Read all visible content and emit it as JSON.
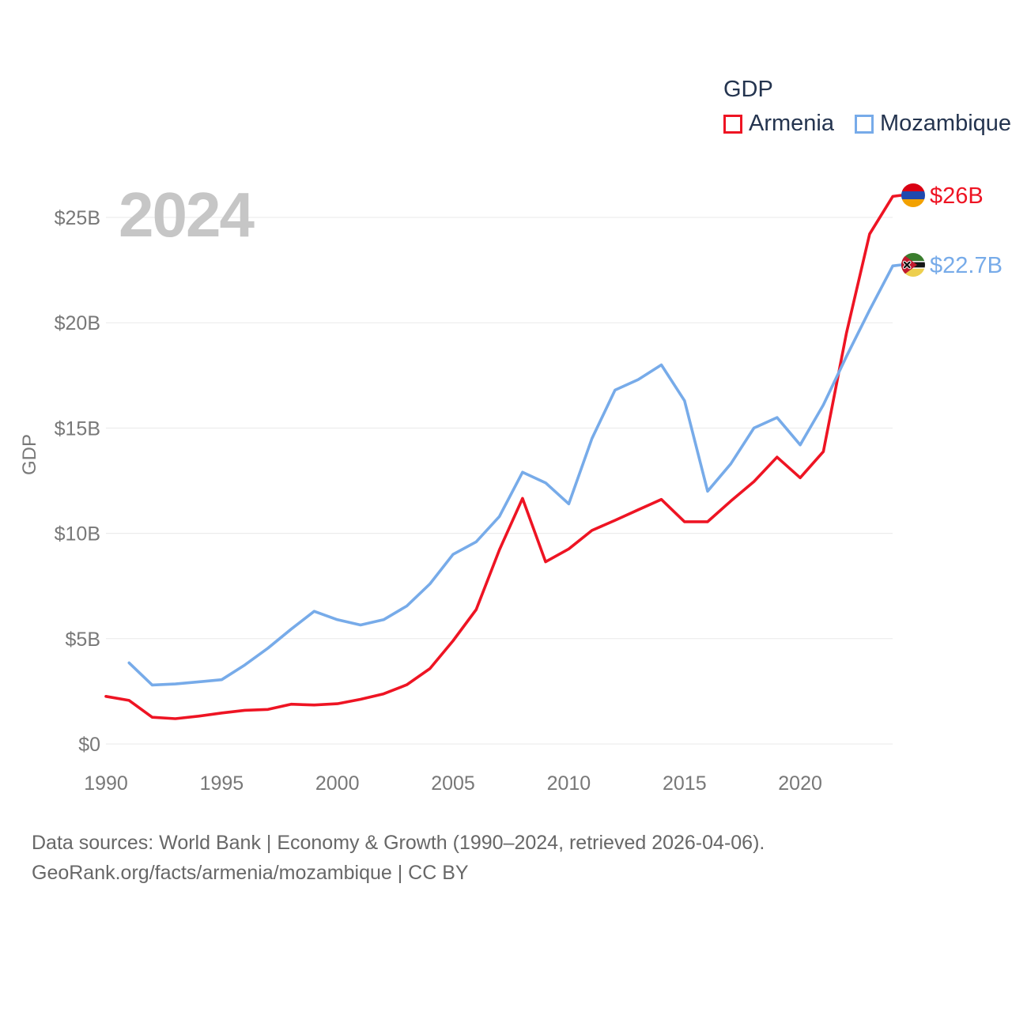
{
  "legend": {
    "title": "GDP",
    "items": [
      {
        "label": "Armenia",
        "color": "#ee1423"
      },
      {
        "label": "Mozambique",
        "color": "#77abe9"
      }
    ]
  },
  "watermark_year": "2024",
  "y_axis": {
    "title": "GDP",
    "tick_labels": [
      "$0",
      "$5B",
      "$10B",
      "$15B",
      "$20B",
      "$25B"
    ]
  },
  "x_axis": {
    "tick_labels": [
      "1990",
      "1995",
      "2000",
      "2005",
      "2010",
      "2015",
      "2020"
    ]
  },
  "end_labels": [
    {
      "series": "Armenia",
      "text": "$26B",
      "flag": "armenia-flag"
    },
    {
      "series": "Mozambique",
      "text": "$22.7B",
      "flag": "mozambique-flag"
    }
  ],
  "footer": {
    "line1": "Data sources: World Bank | Economy & Growth (1990–2024, retrieved 2026-04-06).",
    "line2": "GeoRank.org/facts/armenia/mozambique | CC BY"
  },
  "chart_data": {
    "type": "line",
    "title": "GDP",
    "x": [
      1990,
      1991,
      1992,
      1993,
      1994,
      1995,
      1996,
      1997,
      1998,
      1999,
      2000,
      2001,
      2002,
      2003,
      2004,
      2005,
      2006,
      2007,
      2008,
      2009,
      2010,
      2011,
      2012,
      2013,
      2014,
      2015,
      2016,
      2017,
      2018,
      2019,
      2020,
      2021,
      2022,
      2023,
      2024
    ],
    "series": [
      {
        "name": "Armenia",
        "color": "#ee1423",
        "unit": "billion USD",
        "values": [
          2.26,
          2.07,
          1.27,
          1.2,
          1.32,
          1.47,
          1.6,
          1.64,
          1.89,
          1.85,
          1.91,
          2.12,
          2.38,
          2.81,
          3.58,
          4.9,
          6.38,
          9.21,
          11.66,
          8.65,
          9.26,
          10.14,
          10.62,
          11.12,
          11.61,
          10.55,
          10.55,
          11.53,
          12.46,
          13.62,
          12.64,
          13.88,
          19.51,
          24.21,
          26.0
        ]
      },
      {
        "name": "Mozambique",
        "color": "#77abe9",
        "unit": "billion USD",
        "values": [
          null,
          3.85,
          2.8,
          2.85,
          2.95,
          3.05,
          3.75,
          4.55,
          5.45,
          6.3,
          5.9,
          5.65,
          5.9,
          6.55,
          7.6,
          9.0,
          9.6,
          10.8,
          12.9,
          12.4,
          11.4,
          14.5,
          16.8,
          17.3,
          18.0,
          16.3,
          12.0,
          13.3,
          15.0,
          15.5,
          14.2,
          16.1,
          18.4,
          20.6,
          22.7
        ]
      }
    ],
    "ylabel": "GDP",
    "ylim": [
      0,
      26
    ],
    "yticks": [
      0,
      5,
      10,
      15,
      20,
      25
    ],
    "xticks": [
      1990,
      1995,
      2000,
      2005,
      2010,
      2015,
      2020
    ],
    "grid": "horizontal",
    "legend_position": "top-right",
    "final_values": {
      "Armenia": "$26B",
      "Mozambique": "$22.7B"
    }
  }
}
